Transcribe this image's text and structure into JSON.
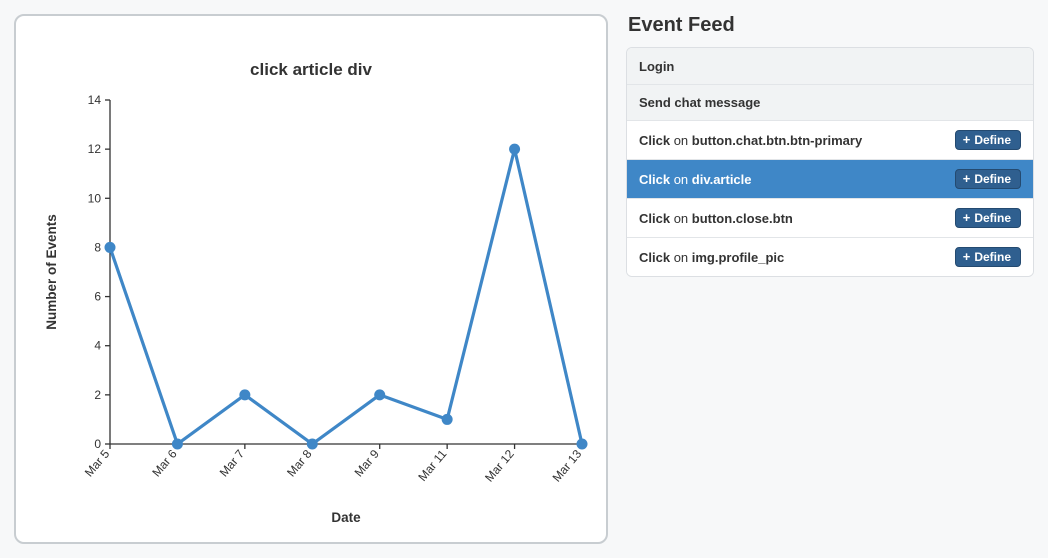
{
  "page_background": "#f7f8f9",
  "chart": {
    "type": "line",
    "title": "click article div",
    "title_fontsize": 17,
    "xlabel": "Date",
    "ylabel": "Number of Events",
    "axis_label_fontsize": 13,
    "axis_label_fontweight": "bold",
    "tick_fontsize": 12,
    "x_categories": [
      "Mar 5",
      "Mar 6",
      "Mar 7",
      "Mar 8",
      "Mar 9",
      "Mar 11",
      "Mar 12",
      "Mar 13"
    ],
    "y_values": [
      8,
      0,
      2,
      0,
      2,
      1,
      12,
      0
    ],
    "ylim": [
      0,
      14
    ],
    "ytick_step": 2,
    "line_color": "#3f87c7",
    "line_width": 3.2,
    "marker_color": "#3f87c7",
    "marker_radius": 5.5,
    "axis_color": "#333333",
    "background_color": "#ffffff",
    "card_border_color": "#c8cdd1",
    "card_border_radius": 10,
    "x_tick_rotation": -50
  },
  "feed": {
    "title": "Event Feed",
    "define_button_label": "Define",
    "define_button_bg": "#2f5f8f",
    "define_button_border": "#244a70",
    "define_button_text_color": "#ffffff",
    "row_border_color": "#e2e5e8",
    "header_bg": "#f1f3f4",
    "selected_bg": "#3f87c7",
    "selected_text_color": "#ffffff",
    "items": [
      {
        "kind": "header",
        "bold": "Login"
      },
      {
        "kind": "header",
        "bold": "Send chat message"
      },
      {
        "kind": "event",
        "prefix": "Click",
        "mid": " on ",
        "bold": "button.chat.btn.btn-primary",
        "has_button": true,
        "selected": false
      },
      {
        "kind": "event",
        "prefix": "Click",
        "mid": " on ",
        "bold": "div.article",
        "has_button": true,
        "selected": true
      },
      {
        "kind": "event",
        "prefix": "Click",
        "mid": " on ",
        "bold": "button.close.btn",
        "has_button": true,
        "selected": false
      },
      {
        "kind": "event",
        "prefix": "Click",
        "mid": " on ",
        "bold": "img.profile_pic",
        "has_button": true,
        "selected": false
      }
    ]
  }
}
